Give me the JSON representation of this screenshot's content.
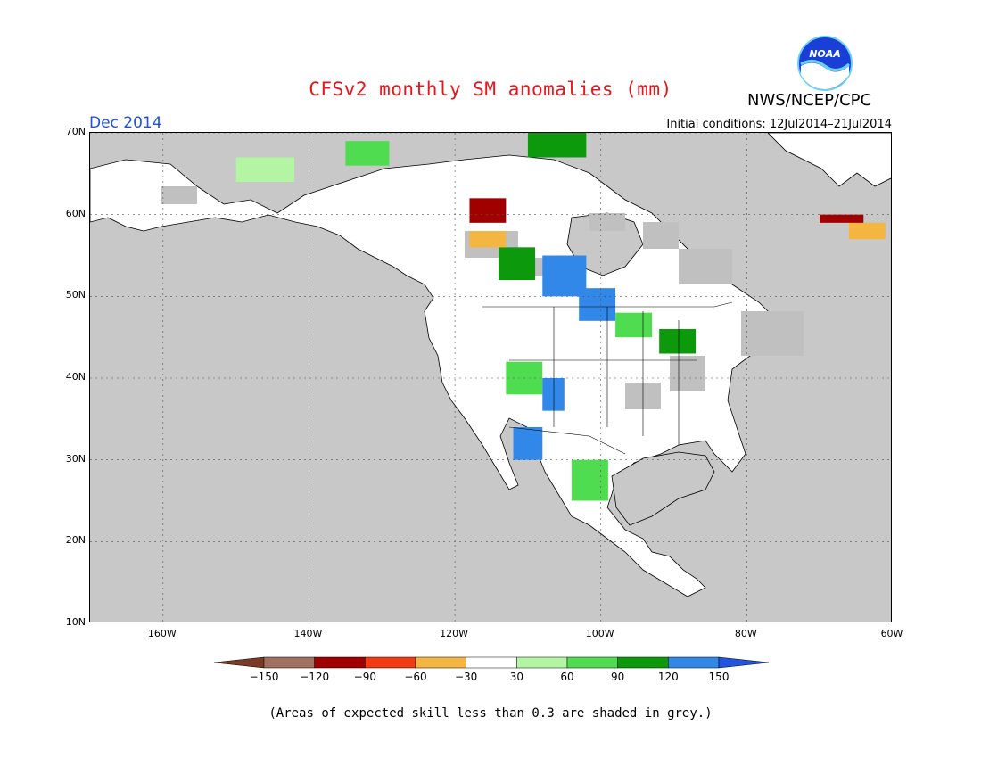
{
  "header": {
    "title": "CFSv2 monthly SM anomalies (mm)",
    "agency": "NWS/NCEP/CPC",
    "logo_text": "NOAA",
    "month": "Dec 2014",
    "initial_conditions": "Initial conditions: 12Jul2014–21Jul2014"
  },
  "map": {
    "lon_range": [
      -170,
      -60
    ],
    "lat_range": [
      10,
      70
    ],
    "lat_ticks": [
      {
        "value": 70,
        "label": "70N"
      },
      {
        "value": 60,
        "label": "60N"
      },
      {
        "value": 50,
        "label": "50N"
      },
      {
        "value": 40,
        "label": "40N"
      },
      {
        "value": 30,
        "label": "30N"
      },
      {
        "value": 20,
        "label": "20N"
      },
      {
        "value": 10,
        "label": "10N"
      }
    ],
    "lon_ticks": [
      {
        "value": -160,
        "label": "160W"
      },
      {
        "value": -140,
        "label": "140W"
      },
      {
        "value": -120,
        "label": "120W"
      },
      {
        "value": -100,
        "label": "100W"
      },
      {
        "value": -80,
        "label": "80W"
      },
      {
        "value": -60,
        "label": "60W"
      }
    ],
    "colors": {
      "ocean": "#c8c8c8",
      "low_skill": "#c0c0c0",
      "grid": "#555555"
    }
  },
  "colorbar": {
    "levels": [
      "−150",
      "−120",
      "−90",
      "−60",
      "−30",
      "30",
      "60",
      "90",
      "120",
      "150"
    ],
    "colors": [
      "#7a3b26",
      "#a07060",
      "#a00000",
      "#f23a13",
      "#f5b541",
      "#ffffff",
      "#b4f5a4",
      "#50dc50",
      "#0c9a0c",
      "#3288e8",
      "#1f55e0"
    ]
  },
  "footnote": "(Areas of expected skill less than 0.3 are shaded in grey.)",
  "anomaly_regions": [
    {
      "lon": -114,
      "lat": 52,
      "w": 5,
      "h": 4,
      "cls": "g3"
    },
    {
      "lon": -108,
      "lat": 50,
      "w": 6,
      "h": 5,
      "cls": "b1"
    },
    {
      "lon": -103,
      "lat": 47,
      "w": 5,
      "h": 4,
      "cls": "b1"
    },
    {
      "lon": -98,
      "lat": 45,
      "w": 5,
      "h": 3,
      "cls": "g2"
    },
    {
      "lon": -92,
      "lat": 43,
      "w": 5,
      "h": 3,
      "cls": "g3"
    },
    {
      "lon": -113,
      "lat": 38,
      "w": 5,
      "h": 4,
      "cls": "g2"
    },
    {
      "lon": -108,
      "lat": 36,
      "w": 3,
      "h": 4,
      "cls": "b1"
    },
    {
      "lon": -112,
      "lat": 30,
      "w": 4,
      "h": 4,
      "cls": "b1"
    },
    {
      "lon": -104,
      "lat": 25,
      "w": 5,
      "h": 5,
      "cls": "g2"
    },
    {
      "lon": -118,
      "lat": 59,
      "w": 5,
      "h": 3,
      "cls": "r1"
    },
    {
      "lon": -118,
      "lat": 56,
      "w": 5,
      "h": 2,
      "cls": "o1"
    },
    {
      "lon": -66,
      "lat": 57,
      "w": 5,
      "h": 2,
      "cls": "o1"
    },
    {
      "lon": -70,
      "lat": 59,
      "w": 6,
      "h": 1,
      "cls": "r1"
    },
    {
      "lon": -135,
      "lat": 66,
      "w": 6,
      "h": 3,
      "cls": "g2"
    },
    {
      "lon": -110,
      "lat": 67,
      "w": 8,
      "h": 3,
      "cls": "g3"
    },
    {
      "lon": -150,
      "lat": 64,
      "w": 8,
      "h": 3,
      "cls": "g1"
    }
  ]
}
